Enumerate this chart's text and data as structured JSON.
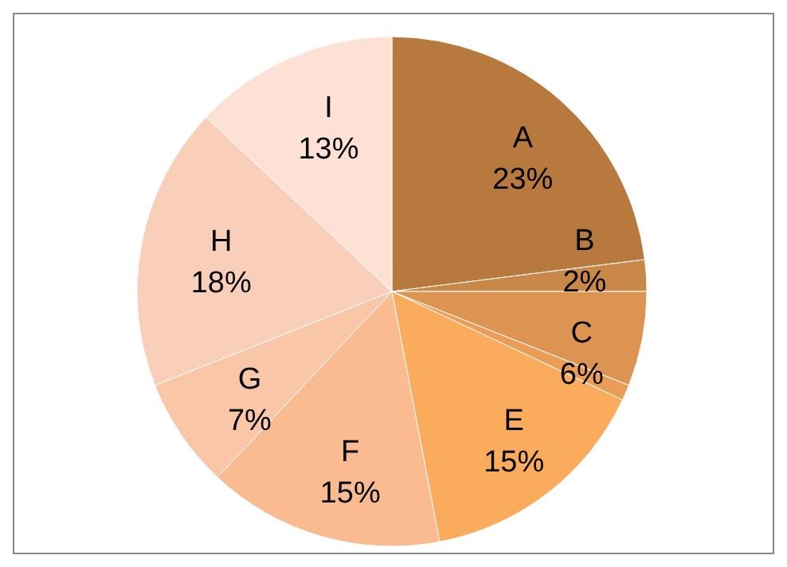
{
  "chart_data": {
    "type": "pie",
    "categories": [
      "A",
      "B",
      "C",
      null,
      "E",
      "F",
      "G",
      "H",
      "I"
    ],
    "values": [
      23,
      2,
      6,
      1,
      15,
      15,
      7,
      18,
      13
    ],
    "value_labels": [
      "23%",
      "2%",
      "6%",
      null,
      "15%",
      "15%",
      "7%",
      "18%",
      "13%"
    ],
    "colors": [
      "#b8793e",
      "#c98748",
      "#dd9452",
      "#eb9d56",
      "#fbab5c",
      "#f9bb8f",
      "#f9c6a7",
      "#facfba",
      "#fde1d4"
    ],
    "legend": false
  }
}
